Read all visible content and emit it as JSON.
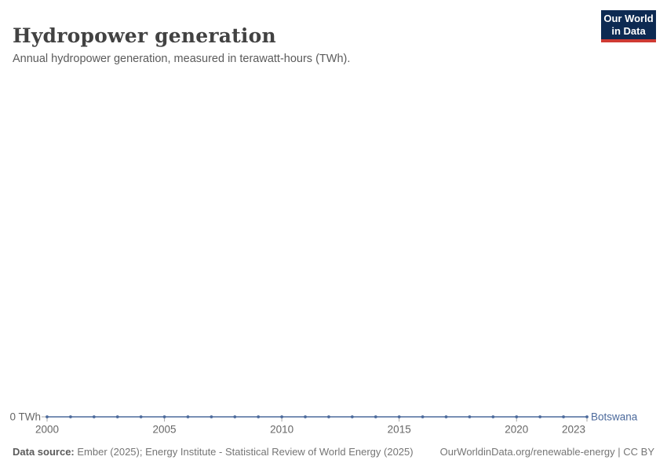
{
  "header": {
    "title": "Hydropower generation",
    "subtitle": "Annual hydropower generation, measured in terawatt-hours (TWh).",
    "logo": {
      "line1": "Our World",
      "line2": "in Data"
    }
  },
  "chart_data": {
    "type": "line",
    "title": "Hydropower generation",
    "subtitle": "Annual hydropower generation, measured in terawatt-hours (TWh).",
    "unit": "TWh",
    "x": [
      2000,
      2001,
      2002,
      2003,
      2004,
      2005,
      2006,
      2007,
      2008,
      2009,
      2010,
      2011,
      2012,
      2013,
      2014,
      2015,
      2016,
      2017,
      2018,
      2019,
      2020,
      2021,
      2022,
      2023
    ],
    "series": [
      {
        "name": "Botswana",
        "values": [
          0,
          0,
          0,
          0,
          0,
          0,
          0,
          0,
          0,
          0,
          0,
          0,
          0,
          0,
          0,
          0,
          0,
          0,
          0,
          0,
          0,
          0,
          0,
          0
        ],
        "color": "#4C6A9C"
      }
    ],
    "x_axis": {
      "tick_years": [
        2000,
        2005,
        2010,
        2015,
        2020,
        2023
      ],
      "range": [
        2000,
        2023
      ]
    },
    "y_axis": {
      "tick_label": "0 TWh",
      "min": 0
    },
    "grid": false,
    "legend_position": "end-of-line"
  },
  "footer": {
    "data_source_label": "Data source:",
    "data_source_text": "Ember (2025); Energy Institute - Statistical Review of World Energy (2025)",
    "rights": "OurWorldinData.org/renewable-energy | CC BY"
  },
  "colors": {
    "line": "#4C6A9C",
    "axis_text": "#676767",
    "tick": "#a7a7a7",
    "logo_bg": "#0d2a52",
    "logo_red": "#cf3a33"
  }
}
